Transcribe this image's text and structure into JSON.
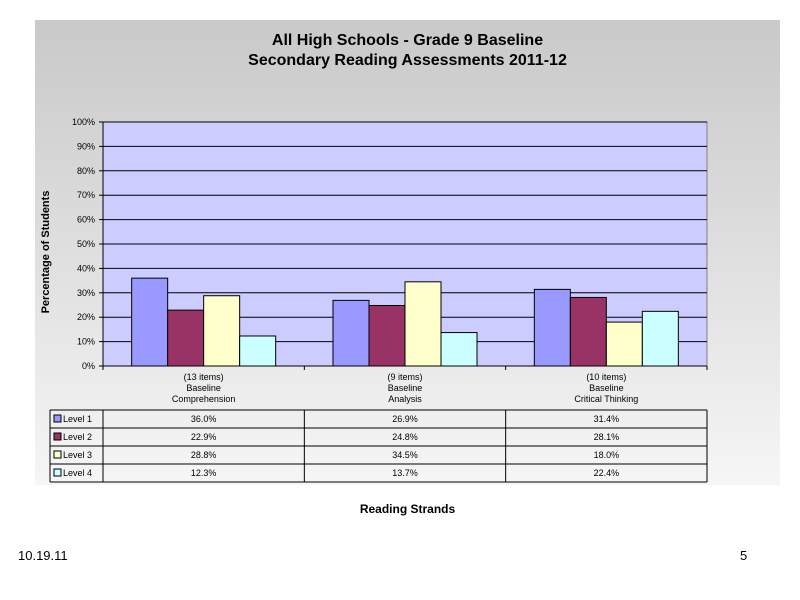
{
  "chart_data": {
    "type": "bar",
    "title": "All High Schools - Grade 9 Baseline",
    "subtitle": "Secondary Reading Assessments 2011-12",
    "xlabel": "Reading Strands",
    "ylabel": "Percentage of Students",
    "ylim": [
      0,
      100
    ],
    "yticks": [
      "0%",
      "10%",
      "20%",
      "30%",
      "40%",
      "50%",
      "60%",
      "70%",
      "80%",
      "90%",
      "100%"
    ],
    "grid": true,
    "categories": [
      [
        "(13 items)",
        "Baseline",
        "Comprehension"
      ],
      [
        "(9 items)",
        "Baseline",
        "Analysis"
      ],
      [
        "(10 items)",
        "Baseline",
        "Critical Thinking"
      ]
    ],
    "series": [
      {
        "name": "Level 1",
        "color": "#9999ff",
        "values": [
          36.0,
          26.9,
          31.4
        ],
        "labels": [
          "36.0%",
          "26.9%",
          "31.4%"
        ]
      },
      {
        "name": "Level 2",
        "color": "#993366",
        "values": [
          22.9,
          24.8,
          28.1
        ],
        "labels": [
          "22.9%",
          "24.8%",
          "28.1%"
        ]
      },
      {
        "name": "Level 3",
        "color": "#ffffcc",
        "values": [
          28.8,
          34.5,
          18.0
        ],
        "labels": [
          "28.8%",
          "34.5%",
          "18.0%"
        ]
      },
      {
        "name": "Level 4",
        "color": "#ccffff",
        "values": [
          12.3,
          13.7,
          22.4
        ],
        "labels": [
          "12.3%",
          "13.7%",
          "22.4%"
        ]
      }
    ],
    "data_table": true
  },
  "footer": {
    "date": "10.19.11",
    "page": "5"
  }
}
